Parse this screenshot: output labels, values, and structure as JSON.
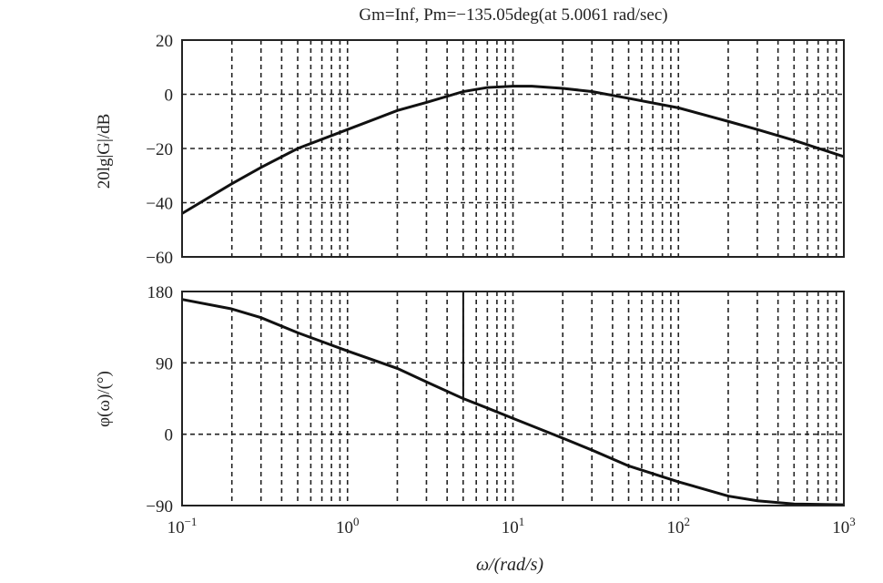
{
  "chart_data": [
    {
      "type": "line",
      "panel": "magnitude",
      "title": "Gm=Inf, Pm=−135.05deg(at 5.0061 rad/sec)",
      "ylabel": "20lg|G|/dB",
      "xscale": "log",
      "xlim": [
        0.1,
        1000
      ],
      "ylim": [
        -60,
        20
      ],
      "yticks": [
        20,
        0,
        -20,
        -40,
        -60
      ],
      "ytick_labels": [
        "20",
        "0",
        "−20",
        "−40",
        "−60"
      ],
      "grid": true,
      "series": [
        {
          "x": [
            0.1,
            0.2,
            0.3,
            0.5,
            1,
            2,
            3,
            5,
            7,
            10,
            13,
            20,
            30,
            50,
            100,
            200,
            300,
            500,
            1000
          ],
          "y": [
            -44,
            -33,
            -27,
            -20,
            -13,
            -6,
            -3,
            1,
            2.5,
            3,
            3,
            2.2,
            1,
            -1.5,
            -5,
            -10,
            -13,
            -17,
            -23
          ]
        }
      ]
    },
    {
      "type": "line",
      "panel": "phase",
      "ylabel": "φ(ω)/(°)",
      "xlabel": "ω/(rad/s)",
      "xscale": "log",
      "xlim": [
        0.1,
        1000
      ],
      "ylim": [
        -90,
        180
      ],
      "yticks": [
        180,
        90,
        0,
        -90
      ],
      "ytick_labels": [
        "180",
        "90",
        "0",
        "−90"
      ],
      "xtick_labels": [
        {
          "base": "10",
          "exp": "−1"
        },
        {
          "base": "10",
          "exp": "0"
        },
        {
          "base": "10",
          "exp": "1"
        },
        {
          "base": "10",
          "exp": "2"
        },
        {
          "base": "10",
          "exp": "3"
        }
      ],
      "grid": true,
      "marker_x": 5.0061,
      "marker_y_range": [
        45,
        180
      ],
      "series": [
        {
          "x": [
            0.1,
            0.2,
            0.3,
            0.5,
            1,
            2,
            3,
            5,
            7,
            10,
            20,
            30,
            50,
            100,
            200,
            300,
            500,
            1000
          ],
          "y": [
            170,
            158,
            147,
            128,
            105,
            83,
            66,
            45,
            33,
            20,
            -5,
            -20,
            -40,
            -60,
            -78,
            -84,
            -88,
            -89
          ]
        }
      ]
    }
  ]
}
